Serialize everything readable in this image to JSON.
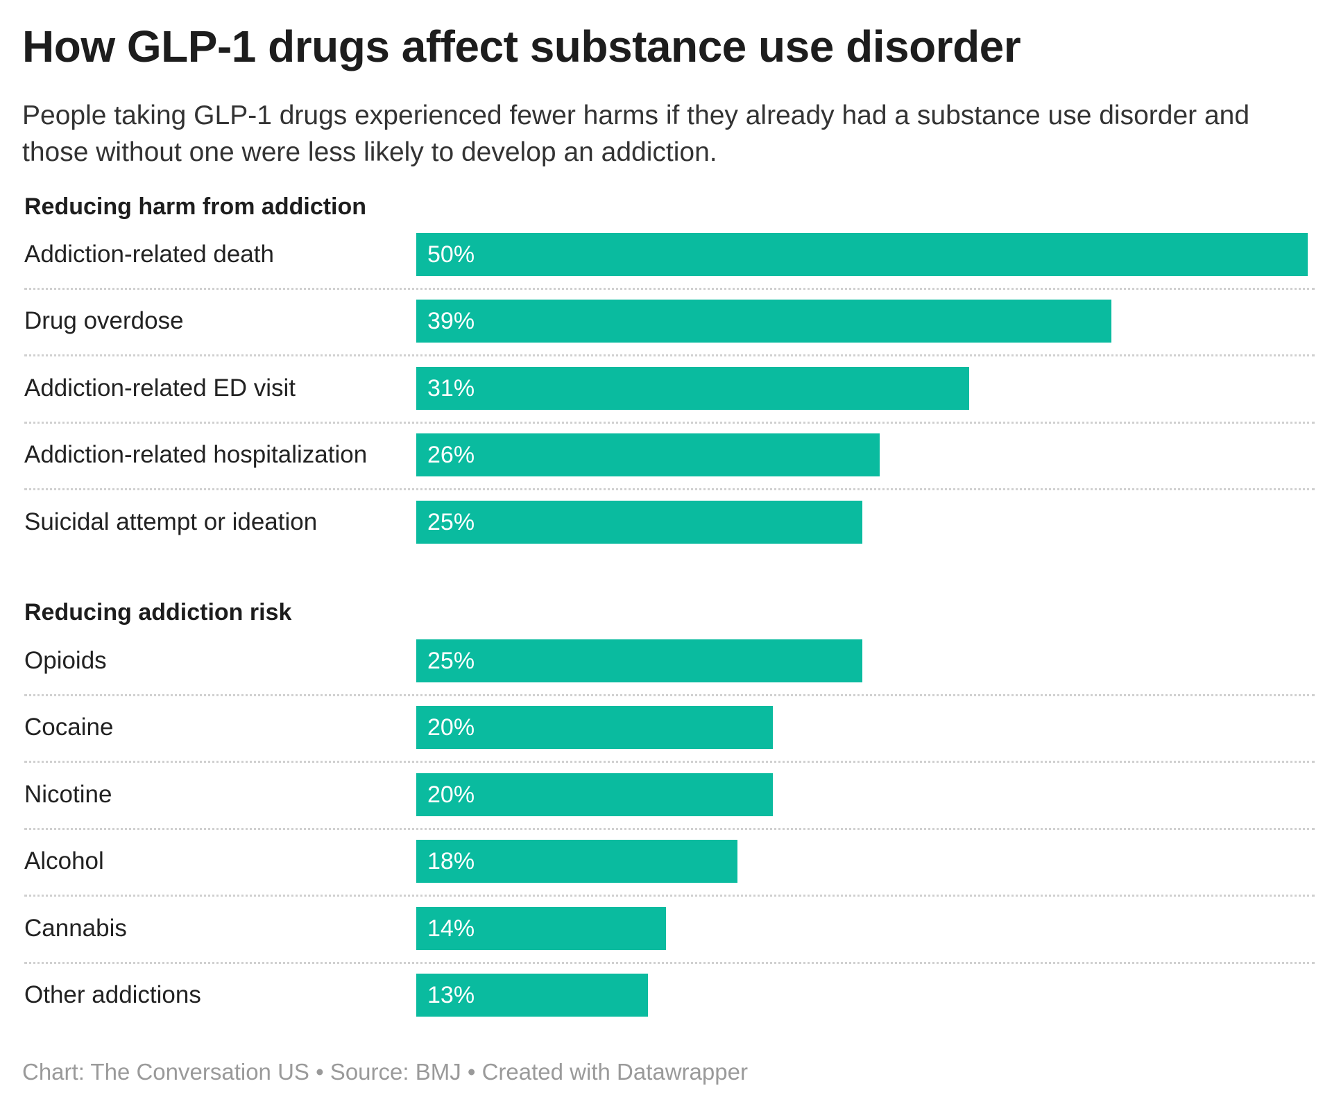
{
  "header": {
    "title": "How GLP-1 drugs affect substance use disorder",
    "subtitle": "People taking GLP-1 drugs experienced fewer harms if they already had a substance use disorder and those without one were less likely to develop an addiction."
  },
  "footer": "Chart: The Conversation US • Source: BMJ • Created with Datawrapper",
  "chart_data": {
    "type": "bar",
    "orientation": "horizontal",
    "bar_color": "#0abb9f",
    "xlim": [
      0,
      50
    ],
    "groups": [
      {
        "title": "Reducing harm from addiction",
        "categories": [
          "Addiction-related death",
          "Drug overdose",
          "Addiction-related ED visit",
          "Addiction-related hospitalization",
          "Suicidal attempt or ideation"
        ],
        "values": [
          50,
          39,
          31,
          26,
          25
        ],
        "labels": [
          "50%",
          "39%",
          "31%",
          "26%",
          "25%"
        ]
      },
      {
        "title": "Reducing addiction risk",
        "categories": [
          "Opioids",
          "Cocaine",
          "Nicotine",
          "Alcohol",
          "Cannabis",
          "Other addictions"
        ],
        "values": [
          25,
          20,
          20,
          18,
          14,
          13
        ],
        "labels": [
          "25%",
          "20%",
          "20%",
          "18%",
          "14%",
          "13%"
        ]
      }
    ]
  }
}
